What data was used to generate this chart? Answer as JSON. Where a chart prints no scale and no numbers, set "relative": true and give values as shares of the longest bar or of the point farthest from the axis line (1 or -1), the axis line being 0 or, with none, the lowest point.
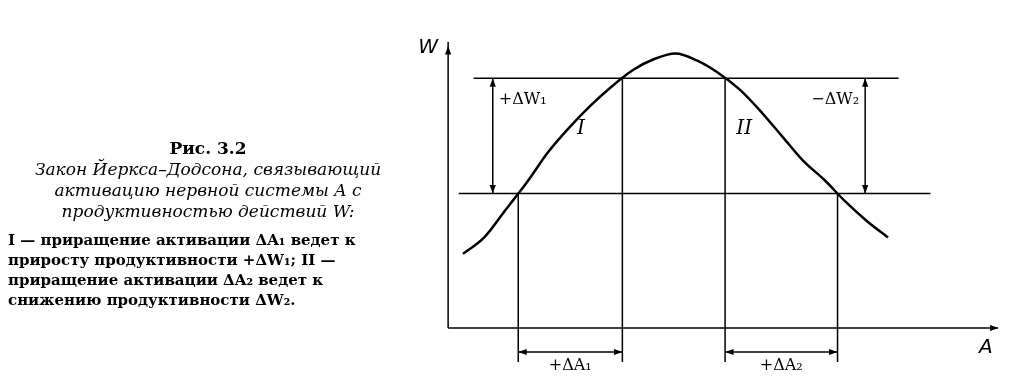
{
  "chart_data": {
    "type": "line",
    "relative": true,
    "title": "Рис. 3.2",
    "subtitle": "Закон Йеркса–Додсона, связывающий активацию нервной системы A с продуктивностью действий W:",
    "xlabel": "A",
    "ylabel": "W",
    "categories": [
      null,
      null,
      null,
      null,
      null,
      null,
      null,
      null,
      null,
      null,
      null,
      null,
      null,
      null,
      null,
      null,
      null,
      null,
      null,
      null,
      null
    ],
    "series": [
      {
        "color": "#000000",
        "values": [
          0.27,
          0.33,
          0.43,
          0.53,
          0.64,
          0.73,
          0.81,
          0.88,
          0.94,
          0.98,
          1.0,
          0.975,
          0.93,
          0.87,
          0.79,
          0.7,
          0.61,
          0.54,
          0.46,
          0.39,
          0.33
        ]
      }
    ],
    "ref_lines": [
      {
        "axis": "y",
        "value": 0.91,
        "color": "#000000"
      },
      {
        "axis": "y",
        "value": 0.49,
        "color": "#000000"
      }
    ],
    "annotations": [
      "+ΔW₁",
      "−ΔW₂",
      "I",
      "II",
      "+ΔA₁",
      "+ΔA₂",
      "I — приращение активации ΔA₁ ведет к приросту продуктивности +ΔW₁; II — приращение активации ΔA₂ ведет к снижению продуктивности  ΔW₂."
    ],
    "legend": false,
    "marker": "none",
    "line_style": "solid"
  }
}
